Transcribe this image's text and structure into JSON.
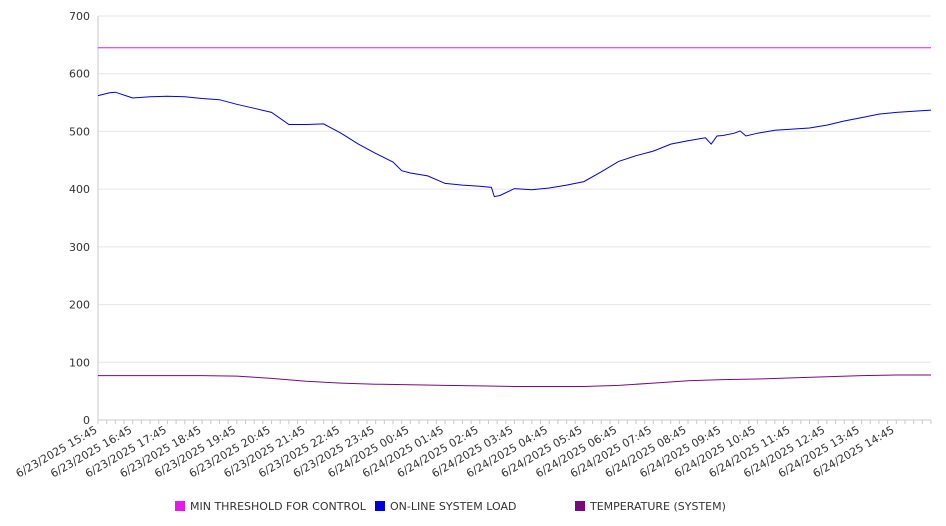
{
  "chart_data": {
    "type": "line",
    "xlabel": "",
    "ylabel": "",
    "ylim": [
      0,
      700
    ],
    "yticks": [
      0,
      100,
      200,
      300,
      400,
      500,
      600,
      700
    ],
    "grid": true,
    "legend_position": "bottom",
    "x_tick_labels": [
      "6/23/2025 15:45",
      "6/23/2025 16:45",
      "6/23/2025 17:45",
      "6/23/2025 18:45",
      "6/23/2025 19:45",
      "6/23/2025 20:45",
      "6/23/2025 21:45",
      "6/23/2025 22:45",
      "6/23/2025 23:45",
      "6/24/2025 00:45",
      "6/24/2025 01:45",
      "6/24/2025 02:45",
      "6/24/2025 03:45",
      "6/24/2025 04:45",
      "6/24/2025 05:45",
      "6/24/2025 06:45",
      "6/24/2025 07:45",
      "6/24/2025 08:45",
      "6/24/2025 09:45",
      "6/24/2025 10:45",
      "6/24/2025 11:45",
      "6/24/2025 12:45",
      "6/24/2025 13:45",
      "6/24/2025 14:45"
    ],
    "x_range": [
      "6/23/2025 15:45",
      "6/24/2025 15:45"
    ],
    "series": [
      {
        "name": "MIN THRESHOLD FOR CONTROL",
        "color": "#e619e6",
        "points": [
          [
            "6/23/2025 15:45",
            645
          ],
          [
            "6/24/2025 15:45",
            645
          ]
        ]
      },
      {
        "name": "ON-LINE SYSTEM LOAD",
        "color": "#0000dd",
        "points": [
          [
            "6/23/2025 15:45",
            562
          ],
          [
            "6/23/2025 16:05",
            567
          ],
          [
            "6/23/2025 16:15",
            568
          ],
          [
            "6/23/2025 16:45",
            558
          ],
          [
            "6/23/2025 17:15",
            560
          ],
          [
            "6/23/2025 17:45",
            561
          ],
          [
            "6/23/2025 18:15",
            560
          ],
          [
            "6/23/2025 18:45",
            557
          ],
          [
            "6/23/2025 19:15",
            555
          ],
          [
            "6/23/2025 19:45",
            547
          ],
          [
            "6/23/2025 20:15",
            540
          ],
          [
            "6/23/2025 20:45",
            533
          ],
          [
            "6/23/2025 21:15",
            512
          ],
          [
            "6/23/2025 21:45",
            512
          ],
          [
            "6/23/2025 22:15",
            513
          ],
          [
            "6/23/2025 22:45",
            497
          ],
          [
            "6/23/2025 23:15",
            478
          ],
          [
            "6/23/2025 23:45",
            462
          ],
          [
            "6/24/2025 00:15",
            447
          ],
          [
            "6/24/2025 00:30",
            432
          ],
          [
            "6/24/2025 00:45",
            428
          ],
          [
            "6/24/2025 01:15",
            423
          ],
          [
            "6/24/2025 01:45",
            410
          ],
          [
            "6/24/2025 02:15",
            407
          ],
          [
            "6/24/2025 02:45",
            405
          ],
          [
            "6/24/2025 03:05",
            403
          ],
          [
            "6/24/2025 03:10",
            387
          ],
          [
            "6/24/2025 03:20",
            389
          ],
          [
            "6/24/2025 03:45",
            401
          ],
          [
            "6/24/2025 04:15",
            399
          ],
          [
            "6/24/2025 04:45",
            402
          ],
          [
            "6/24/2025 05:15",
            407
          ],
          [
            "6/24/2025 05:45",
            413
          ],
          [
            "6/24/2025 06:15",
            430
          ],
          [
            "6/24/2025 06:45",
            448
          ],
          [
            "6/24/2025 07:15",
            458
          ],
          [
            "6/24/2025 07:45",
            466
          ],
          [
            "6/24/2025 08:15",
            478
          ],
          [
            "6/24/2025 08:45",
            484
          ],
          [
            "6/24/2025 09:15",
            489
          ],
          [
            "6/24/2025 09:25",
            478
          ],
          [
            "6/24/2025 09:35",
            492
          ],
          [
            "6/24/2025 09:45",
            493
          ],
          [
            "6/24/2025 10:05",
            497
          ],
          [
            "6/24/2025 10:15",
            501
          ],
          [
            "6/24/2025 10:25",
            492
          ],
          [
            "6/24/2025 10:45",
            497
          ],
          [
            "6/24/2025 11:15",
            502
          ],
          [
            "6/24/2025 11:45",
            504
          ],
          [
            "6/24/2025 12:15",
            506
          ],
          [
            "6/24/2025 12:45",
            511
          ],
          [
            "6/24/2025 13:15",
            518
          ],
          [
            "6/24/2025 13:45",
            524
          ],
          [
            "6/24/2025 14:15",
            530
          ],
          [
            "6/24/2025 14:45",
            533
          ],
          [
            "6/24/2025 15:45",
            537
          ]
        ]
      },
      {
        "name": "TEMPERATURE (SYSTEM)",
        "color": "#7a0a7a",
        "points": [
          [
            "6/23/2025 15:45",
            77
          ],
          [
            "6/23/2025 18:45",
            77
          ],
          [
            "6/23/2025 19:45",
            76
          ],
          [
            "6/23/2025 20:45",
            72
          ],
          [
            "6/23/2025 21:45",
            67
          ],
          [
            "6/23/2025 22:45",
            64
          ],
          [
            "6/23/2025 23:45",
            62
          ],
          [
            "6/24/2025 00:45",
            61
          ],
          [
            "6/24/2025 01:45",
            60
          ],
          [
            "6/24/2025 02:45",
            59
          ],
          [
            "6/24/2025 03:45",
            58
          ],
          [
            "6/24/2025 04:45",
            58
          ],
          [
            "6/24/2025 05:45",
            58
          ],
          [
            "6/24/2025 06:45",
            60
          ],
          [
            "6/24/2025 07:45",
            64
          ],
          [
            "6/24/2025 08:45",
            68
          ],
          [
            "6/24/2025 09:45",
            70
          ],
          [
            "6/24/2025 10:45",
            71
          ],
          [
            "6/24/2025 11:45",
            73
          ],
          [
            "6/24/2025 12:45",
            75
          ],
          [
            "6/24/2025 13:45",
            77
          ],
          [
            "6/24/2025 14:45",
            78
          ],
          [
            "6/24/2025 15:45",
            78
          ]
        ]
      }
    ]
  }
}
